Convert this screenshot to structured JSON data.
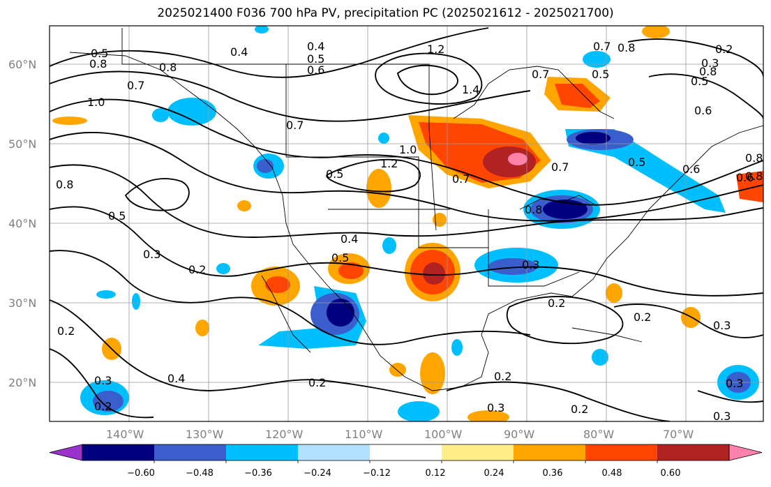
{
  "title": "2025021400 F036 700 hPa PV, precipitation PC (2025021612 - 2025021700)",
  "map": {
    "lat_labels": [
      "60°N",
      "50°N",
      "40°N",
      "30°N",
      "20°N"
    ],
    "lon_labels": [
      "140°W",
      "130°W",
      "120°W",
      "110°W",
      "100°W",
      "90°W",
      "80°W",
      "70°W"
    ],
    "pv_contour_labels": [
      "0.5",
      "0.8",
      "0.8",
      "1.0",
      "0.7",
      "0.8",
      "0.5",
      "0.3",
      "0.2",
      "0.2",
      "0.4",
      "0.3",
      "0.2",
      "0.2",
      "0.4",
      "0.5",
      "0.7",
      "1.2",
      "0.5",
      "1.0",
      "0.7",
      "0.4",
      "0.5",
      "0.6",
      "0.4",
      "1.2",
      "1.4",
      "0.7",
      "0.7",
      "0.5",
      "0.8",
      "0.6",
      "0.5",
      "0.7",
      "0.8",
      "0.8",
      "0.2",
      "0.3",
      "0.5",
      "0.6",
      "0.8",
      "0.6",
      "0.8",
      "0.3",
      "0.2",
      "0.2",
      "0.3",
      "0.3",
      "0.2",
      "0.2",
      "0.3",
      "0.3"
    ]
  },
  "colorbar": {
    "ticks": [
      "−0.60",
      "−0.48",
      "−0.36",
      "−0.24",
      "−0.12",
      "0.12",
      "0.24",
      "0.36",
      "0.48",
      "0.60"
    ],
    "colors": [
      "#9933cc",
      "#000080",
      "#3a5fcd",
      "#00bfff",
      "#b0e2ff",
      "#ffffff",
      "#ffee88",
      "#ffa500",
      "#ff4500",
      "#b22222",
      "#ff82ab"
    ]
  }
}
